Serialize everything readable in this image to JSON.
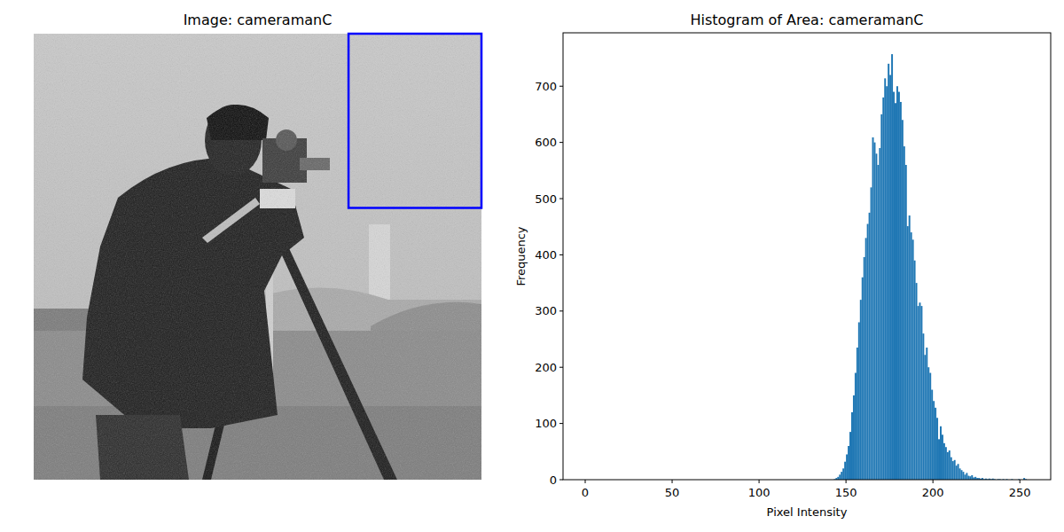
{
  "chart_data": [
    {
      "type": "image",
      "title": "Image: cameramanC",
      "xlim": [
        0,
        512
      ],
      "ylim": [
        512,
        0
      ],
      "tick_labels": false,
      "color": "#0000ff",
      "box": {
        "x": [
          360,
          512
        ],
        "y": [
          0,
          200
        ]
      }
    },
    {
      "type": "histogram",
      "title": "Histogram of Area: cameramanC",
      "x_label": "Pixel Intensity",
      "y_label": "Frequency",
      "color": "#1f77b4",
      "xlim": [
        -12.75,
        267.75
      ],
      "ylim": [
        0,
        795
      ],
      "xticks": [
        0,
        50,
        100,
        150,
        200,
        250
      ],
      "yticks": [
        0,
        100,
        200,
        300,
        400,
        500,
        600,
        700
      ],
      "bins": [
        140,
        141,
        142,
        143,
        144,
        145,
        146,
        147,
        148,
        149,
        150,
        151,
        152,
        153,
        154,
        155,
        156,
        157,
        158,
        159,
        160,
        161,
        162,
        163,
        164,
        165,
        166,
        167,
        168,
        169,
        170,
        171,
        172,
        173,
        174,
        175,
        176,
        177,
        178,
        179,
        180,
        181,
        182,
        183,
        184,
        185,
        186,
        187,
        188,
        189,
        190,
        191,
        192,
        193,
        194,
        195,
        196,
        197,
        198,
        199,
        200,
        201,
        202,
        203,
        204,
        205,
        206,
        207,
        208,
        209,
        210,
        211,
        212,
        213,
        214,
        215,
        216,
        217,
        218,
        219,
        220,
        221,
        222,
        223,
        224,
        225,
        226,
        227,
        228,
        229,
        230,
        231,
        232,
        233,
        234,
        235,
        236,
        237,
        238,
        239,
        240,
        241,
        242,
        243,
        244,
        245,
        246,
        247,
        248,
        249,
        250,
        251,
        252,
        253,
        254,
        255,
        256
      ],
      "values": [
        0,
        0,
        0,
        1,
        3,
        5,
        9,
        14,
        20,
        32,
        45,
        60,
        85,
        120,
        150,
        190,
        235,
        280,
        320,
        360,
        396,
        430,
        455,
        475,
        520,
        609,
        600,
        580,
        560,
        590,
        650,
        680,
        714,
        700,
        740,
        720,
        757,
        690,
        670,
        700,
        690,
        672,
        640,
        593,
        560,
        451,
        470,
        440,
        427,
        390,
        350,
        309,
        315,
        309,
        260,
        222,
        235,
        200,
        190,
        160,
        140,
        128,
        110,
        72,
        95,
        80,
        65,
        58,
        49,
        52,
        40,
        33,
        35,
        25,
        28,
        20,
        17,
        14,
        9,
        12,
        7,
        6,
        8,
        4,
        5,
        3,
        3,
        2,
        3,
        1,
        2,
        1,
        2,
        1,
        2,
        1,
        0,
        1,
        1,
        0,
        1,
        0,
        1,
        0,
        0,
        1,
        0,
        0,
        0,
        1,
        0,
        0,
        3,
        1,
        0,
        0
      ]
    }
  ]
}
